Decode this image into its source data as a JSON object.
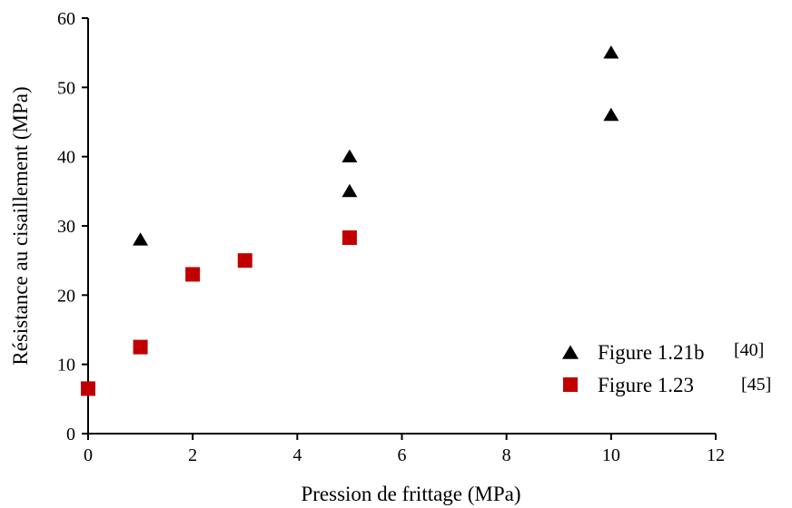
{
  "chart_data": {
    "type": "scatter",
    "xlabel": "Pression de frittage (MPa)",
    "ylabel": "Résistance au cisaillement (MPa)",
    "xlim": [
      0,
      12
    ],
    "ylim": [
      0,
      60
    ],
    "x_ticks": [
      "0",
      "2",
      "4",
      "6",
      "8",
      "10",
      "12"
    ],
    "y_ticks": [
      "0",
      "10",
      "20",
      "30",
      "40",
      "50",
      "60"
    ],
    "grid": false,
    "legend_position": "bottom-right",
    "series": [
      {
        "name": "Figure 1.21b",
        "ref": "[40]",
        "marker": "triangle",
        "color": "#000000",
        "points": [
          {
            "x": 1,
            "y": 28
          },
          {
            "x": 5,
            "y": 40
          },
          {
            "x": 5,
            "y": 35
          },
          {
            "x": 10,
            "y": 55
          },
          {
            "x": 10,
            "y": 46
          }
        ]
      },
      {
        "name": "Figure 1.23",
        "ref": "[45]",
        "marker": "square",
        "color": "#C00000",
        "points": [
          {
            "x": 0,
            "y": 6.5
          },
          {
            "x": 1,
            "y": 12.5
          },
          {
            "x": 2,
            "y": 23
          },
          {
            "x": 3,
            "y": 25
          },
          {
            "x": 5,
            "y": 28.3
          }
        ]
      }
    ]
  }
}
